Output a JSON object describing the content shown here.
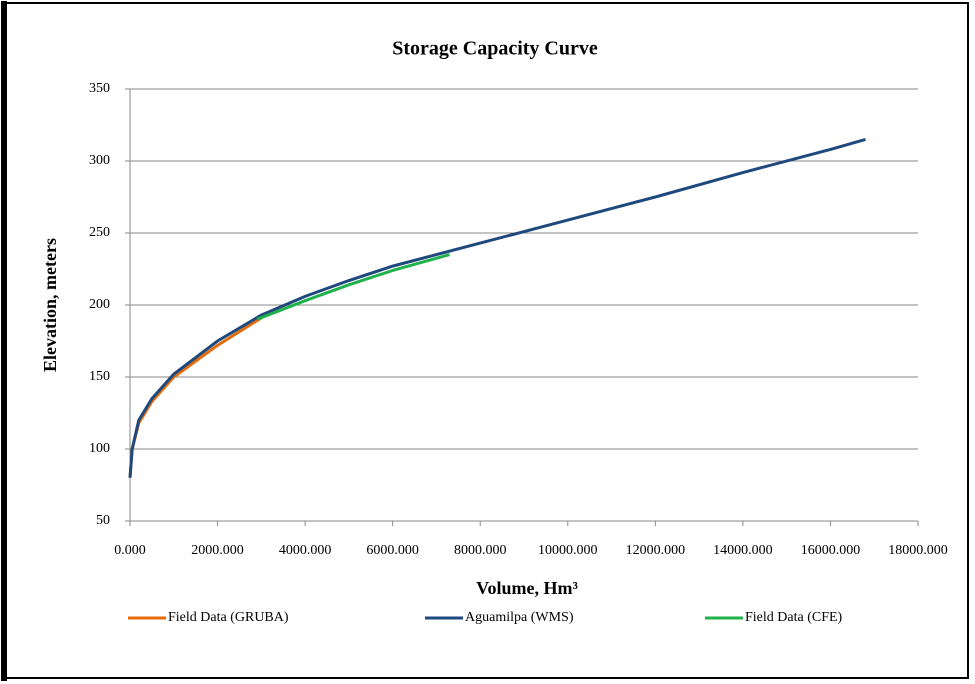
{
  "chart_data": {
    "type": "line",
    "title": "Storage Capacity Curve",
    "xlabel": "Volume, Hm³",
    "ylabel": "Elevation, meters",
    "xlim": [
      0,
      18000
    ],
    "ylim": [
      50,
      350
    ],
    "xticks": [
      {
        "value": 0,
        "label": "0.000"
      },
      {
        "value": 2000,
        "label": "2000.000"
      },
      {
        "value": 4000,
        "label": "4000.000"
      },
      {
        "value": 6000,
        "label": "6000.000"
      },
      {
        "value": 8000,
        "label": "8000.000"
      },
      {
        "value": 10000,
        "label": "10000.000"
      },
      {
        "value": 12000,
        "label": "12000.000"
      },
      {
        "value": 14000,
        "label": "14000.000"
      },
      {
        "value": 16000,
        "label": "16000.000"
      },
      {
        "value": 18000,
        "label": "18000.000"
      }
    ],
    "yticks": [
      50,
      100,
      150,
      200,
      250,
      300,
      350
    ],
    "grid": true,
    "legend": "bottom",
    "series": [
      {
        "name": "Field Data (GRUBA)",
        "color": "#e46c0a",
        "x": [
          0,
          50,
          200,
          500,
          1000,
          2000,
          3000
        ],
        "values": [
          80,
          100,
          118,
          133,
          150,
          172,
          191
        ]
      },
      {
        "name": "Aguamilpa (WMS)",
        "color": "#1f497d",
        "x": [
          0,
          50,
          200,
          500,
          1000,
          2000,
          3000,
          4000,
          5000,
          6000,
          7000,
          8000,
          10000,
          12000,
          14000,
          16000,
          16800
        ],
        "values": [
          80,
          100,
          120,
          135,
          152,
          175,
          193,
          206,
          217,
          227,
          235,
          243,
          259,
          275,
          292,
          308,
          315
        ]
      },
      {
        "name": "Field Data (CFE)",
        "color": "#1fb14a",
        "x": [
          2900,
          4000,
          5000,
          6000,
          7300
        ],
        "values": [
          190,
          203,
          214,
          224,
          235
        ]
      }
    ]
  }
}
